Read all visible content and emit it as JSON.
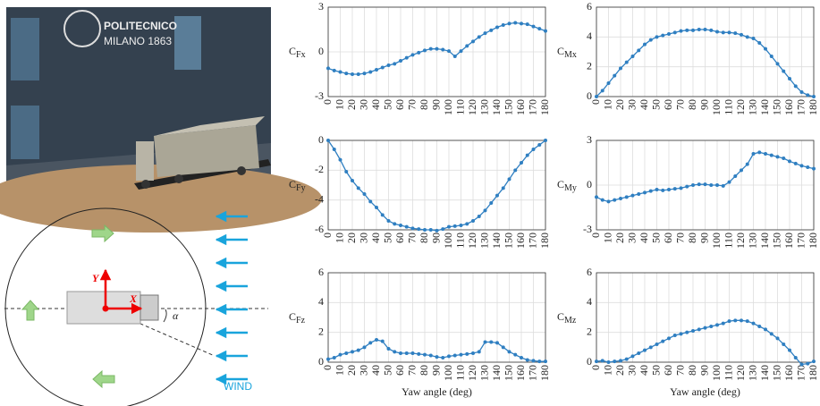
{
  "photo": {
    "title": "POLITECNICO",
    "subtitle": "MILANO 1863"
  },
  "diagram": {
    "y_axis": "Y",
    "x_axis": "X",
    "angle": "α",
    "wind": "WIND"
  },
  "chart_data": [
    {
      "type": "line",
      "ylabel": "C",
      "ylabel_sub": "Fx",
      "color": "#2f7fc1",
      "grid": true,
      "x": [
        0,
        5,
        10,
        15,
        20,
        25,
        30,
        35,
        40,
        45,
        50,
        55,
        60,
        65,
        70,
        75,
        80,
        85,
        90,
        95,
        100,
        105,
        110,
        115,
        120,
        125,
        130,
        135,
        140,
        145,
        150,
        155,
        160,
        165,
        170,
        175,
        180
      ],
      "values": [
        -1.1,
        -1.25,
        -1.35,
        -1.45,
        -1.5,
        -1.5,
        -1.45,
        -1.35,
        -1.2,
        -1.05,
        -0.9,
        -0.8,
        -0.6,
        -0.4,
        -0.2,
        -0.05,
        0.1,
        0.2,
        0.2,
        0.15,
        0.05,
        -0.3,
        0.05,
        0.4,
        0.7,
        1.0,
        1.25,
        1.45,
        1.65,
        1.8,
        1.9,
        1.95,
        1.9,
        1.85,
        1.7,
        1.55,
        1.4
      ],
      "xlim": [
        0,
        180
      ],
      "xticks": [
        0,
        10,
        20,
        30,
        40,
        50,
        60,
        70,
        80,
        90,
        100,
        110,
        120,
        130,
        140,
        150,
        160,
        170,
        180
      ],
      "ylim": [
        -3,
        3
      ],
      "yticks": [
        -3,
        0,
        3
      ]
    },
    {
      "type": "line",
      "ylabel": "C",
      "ylabel_sub": "Mx",
      "color": "#2f7fc1",
      "grid": true,
      "x": [
        0,
        5,
        10,
        15,
        20,
        25,
        30,
        35,
        40,
        45,
        50,
        55,
        60,
        65,
        70,
        75,
        80,
        85,
        90,
        95,
        100,
        105,
        110,
        115,
        120,
        125,
        130,
        135,
        140,
        145,
        150,
        155,
        160,
        165,
        170,
        175,
        180
      ],
      "values": [
        0,
        0.4,
        0.9,
        1.4,
        1.9,
        2.3,
        2.7,
        3.1,
        3.5,
        3.8,
        4.0,
        4.1,
        4.2,
        4.3,
        4.4,
        4.45,
        4.45,
        4.5,
        4.5,
        4.45,
        4.35,
        4.3,
        4.3,
        4.25,
        4.15,
        4.0,
        3.9,
        3.6,
        3.2,
        2.7,
        2.2,
        1.7,
        1.2,
        0.7,
        0.3,
        0.1,
        0
      ],
      "xlim": [
        0,
        180
      ],
      "xticks": [
        0,
        10,
        20,
        30,
        40,
        50,
        60,
        70,
        80,
        90,
        100,
        110,
        120,
        130,
        140,
        150,
        160,
        170,
        180
      ],
      "ylim": [
        0,
        6
      ],
      "yticks": [
        0,
        2,
        4,
        6
      ]
    },
    {
      "type": "line",
      "ylabel": "C",
      "ylabel_sub": "Fy",
      "color": "#2f7fc1",
      "grid": true,
      "x": [
        0,
        5,
        10,
        15,
        20,
        25,
        30,
        35,
        40,
        45,
        50,
        55,
        60,
        65,
        70,
        75,
        80,
        85,
        90,
        95,
        100,
        105,
        110,
        115,
        120,
        125,
        130,
        135,
        140,
        145,
        150,
        155,
        160,
        165,
        170,
        175,
        180
      ],
      "values": [
        0,
        -0.6,
        -1.3,
        -2.1,
        -2.7,
        -3.2,
        -3.6,
        -4.1,
        -4.5,
        -5.0,
        -5.4,
        -5.6,
        -5.7,
        -5.8,
        -5.9,
        -5.95,
        -6.0,
        -6.0,
        -6.05,
        -5.95,
        -5.8,
        -5.75,
        -5.7,
        -5.6,
        -5.4,
        -5.1,
        -4.7,
        -4.2,
        -3.7,
        -3.2,
        -2.6,
        -2.0,
        -1.5,
        -1.0,
        -0.6,
        -0.3,
        0
      ],
      "xlim": [
        0,
        180
      ],
      "xticks": [
        0,
        10,
        20,
        30,
        40,
        50,
        60,
        70,
        80,
        90,
        100,
        110,
        120,
        130,
        140,
        150,
        160,
        170,
        180
      ],
      "ylim": [
        -6,
        0
      ],
      "yticks": [
        -6,
        -4,
        -2,
        0
      ]
    },
    {
      "type": "line",
      "ylabel": "C",
      "ylabel_sub": "My",
      "color": "#2f7fc1",
      "grid": true,
      "x": [
        0,
        5,
        10,
        15,
        20,
        25,
        30,
        35,
        40,
        45,
        50,
        55,
        60,
        65,
        70,
        75,
        80,
        85,
        90,
        95,
        100,
        105,
        110,
        115,
        120,
        125,
        130,
        135,
        140,
        145,
        150,
        155,
        160,
        165,
        170,
        175,
        180
      ],
      "values": [
        -0.8,
        -1.0,
        -1.1,
        -1.0,
        -0.9,
        -0.8,
        -0.7,
        -0.6,
        -0.5,
        -0.4,
        -0.3,
        -0.35,
        -0.3,
        -0.25,
        -0.2,
        -0.1,
        0,
        0.05,
        0.05,
        0,
        0,
        -0.05,
        0.2,
        0.6,
        1.0,
        1.4,
        2.1,
        2.2,
        2.1,
        2.0,
        1.9,
        1.8,
        1.6,
        1.45,
        1.3,
        1.2,
        1.1
      ],
      "xlim": [
        0,
        180
      ],
      "xticks": [
        0,
        10,
        20,
        30,
        40,
        50,
        60,
        70,
        80,
        90,
        100,
        110,
        120,
        130,
        140,
        150,
        160,
        170,
        180
      ],
      "ylim": [
        -3,
        3
      ],
      "yticks": [
        -3,
        0,
        3
      ]
    },
    {
      "type": "line",
      "ylabel": "C",
      "ylabel_sub": "Fz",
      "xlabel": "Yaw angle (deg)",
      "color": "#2f7fc1",
      "grid": true,
      "x": [
        0,
        5,
        10,
        15,
        20,
        25,
        30,
        35,
        40,
        45,
        50,
        55,
        60,
        65,
        70,
        75,
        80,
        85,
        90,
        95,
        100,
        105,
        110,
        115,
        120,
        125,
        130,
        135,
        140,
        145,
        150,
        155,
        160,
        165,
        170,
        175,
        180
      ],
      "values": [
        0.2,
        0.3,
        0.5,
        0.6,
        0.7,
        0.8,
        1.0,
        1.3,
        1.5,
        1.4,
        0.9,
        0.7,
        0.6,
        0.6,
        0.6,
        0.55,
        0.5,
        0.45,
        0.35,
        0.3,
        0.4,
        0.45,
        0.5,
        0.55,
        0.6,
        0.7,
        1.35,
        1.35,
        1.3,
        1.0,
        0.7,
        0.5,
        0.3,
        0.15,
        0.1,
        0.05,
        0.05
      ],
      "xlim": [
        0,
        180
      ],
      "xticks": [
        0,
        10,
        20,
        30,
        40,
        50,
        60,
        70,
        80,
        90,
        100,
        110,
        120,
        130,
        140,
        150,
        160,
        170,
        180
      ],
      "ylim": [
        0,
        6
      ],
      "yticks": [
        0,
        2,
        4,
        6
      ]
    },
    {
      "type": "line",
      "ylabel": "C",
      "ylabel_sub": "Mz",
      "xlabel": "Yaw angle (deg)",
      "color": "#2f7fc1",
      "grid": true,
      "x": [
        0,
        5,
        10,
        15,
        20,
        25,
        30,
        35,
        40,
        45,
        50,
        55,
        60,
        65,
        70,
        75,
        80,
        85,
        90,
        95,
        100,
        105,
        110,
        115,
        120,
        125,
        130,
        135,
        140,
        145,
        150,
        155,
        160,
        165,
        170,
        175,
        180
      ],
      "values": [
        0.05,
        0.1,
        0,
        0.05,
        0.1,
        0.2,
        0.4,
        0.6,
        0.8,
        1.0,
        1.2,
        1.4,
        1.6,
        1.8,
        1.9,
        2.0,
        2.1,
        2.2,
        2.3,
        2.4,
        2.5,
        2.6,
        2.75,
        2.8,
        2.8,
        2.75,
        2.6,
        2.4,
        2.2,
        1.9,
        1.6,
        1.2,
        0.8,
        0.3,
        -0.15,
        -0.1,
        0.05
      ],
      "xlim": [
        0,
        180
      ],
      "xticks": [
        0,
        10,
        20,
        30,
        40,
        50,
        60,
        70,
        80,
        90,
        100,
        110,
        120,
        130,
        140,
        150,
        160,
        170,
        180
      ],
      "ylim": [
        0,
        6
      ],
      "yticks": [
        0,
        2,
        4,
        6
      ]
    }
  ]
}
